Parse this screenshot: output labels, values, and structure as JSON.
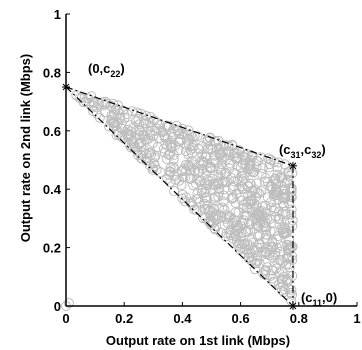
{
  "chart_data": {
    "type": "scatter",
    "title": "",
    "xlabel": "Output rate on 1st link (Mbps)",
    "ylabel": "Output rate on 2nd link (Mbps)",
    "xlim": [
      0,
      1
    ],
    "ylim": [
      0,
      1
    ],
    "xticks": [
      "0",
      "0.2",
      "0.4",
      "0.6",
      "0.8",
      "1"
    ],
    "yticks": [
      "0",
      "0.2",
      "0.4",
      "0.6",
      "0.8",
      "1"
    ],
    "xtick_values": [
      0,
      0.2,
      0.4,
      0.6,
      0.8,
      1
    ],
    "ytick_values": [
      0,
      0.2,
      0.4,
      0.6,
      0.8,
      1
    ],
    "grid": false,
    "colors": {
      "points": "#bdbdbd",
      "boundary": "#000000"
    },
    "vertices": [
      {
        "x": 0,
        "y": 0.75,
        "label_main": "(0,c",
        "label_sub": "22",
        "label_end": ")"
      },
      {
        "x": 0.78,
        "y": 0.48,
        "label_main": "(c",
        "label_sub": "31",
        "label_mid": ",c",
        "label_sub2": "32",
        "label_end": ")"
      },
      {
        "x": 0.78,
        "y": 0,
        "label_main": "(c",
        "label_sub": "11",
        "label_end": ",0)"
      }
    ],
    "boundary_segments": [
      {
        "from": [
          0,
          0.75
        ],
        "to": [
          0.78,
          0.48
        ],
        "style": "dash-dot"
      },
      {
        "from": [
          0.78,
          0.48
        ],
        "to": [
          0.78,
          0
        ],
        "style": "dash-dot"
      },
      {
        "from": [
          0,
          0.75
        ],
        "to": [
          0.78,
          0
        ],
        "style": "dash-dot"
      }
    ],
    "scatter_region": {
      "description_points": [
        [
          0,
          0.75
        ],
        [
          0.78,
          0.48
        ],
        [
          0.78,
          0
        ]
      ],
      "point_count": 700,
      "extra_points": [
        [
          0.0,
          0.0
        ],
        [
          0.01,
          0.01
        ]
      ]
    }
  }
}
